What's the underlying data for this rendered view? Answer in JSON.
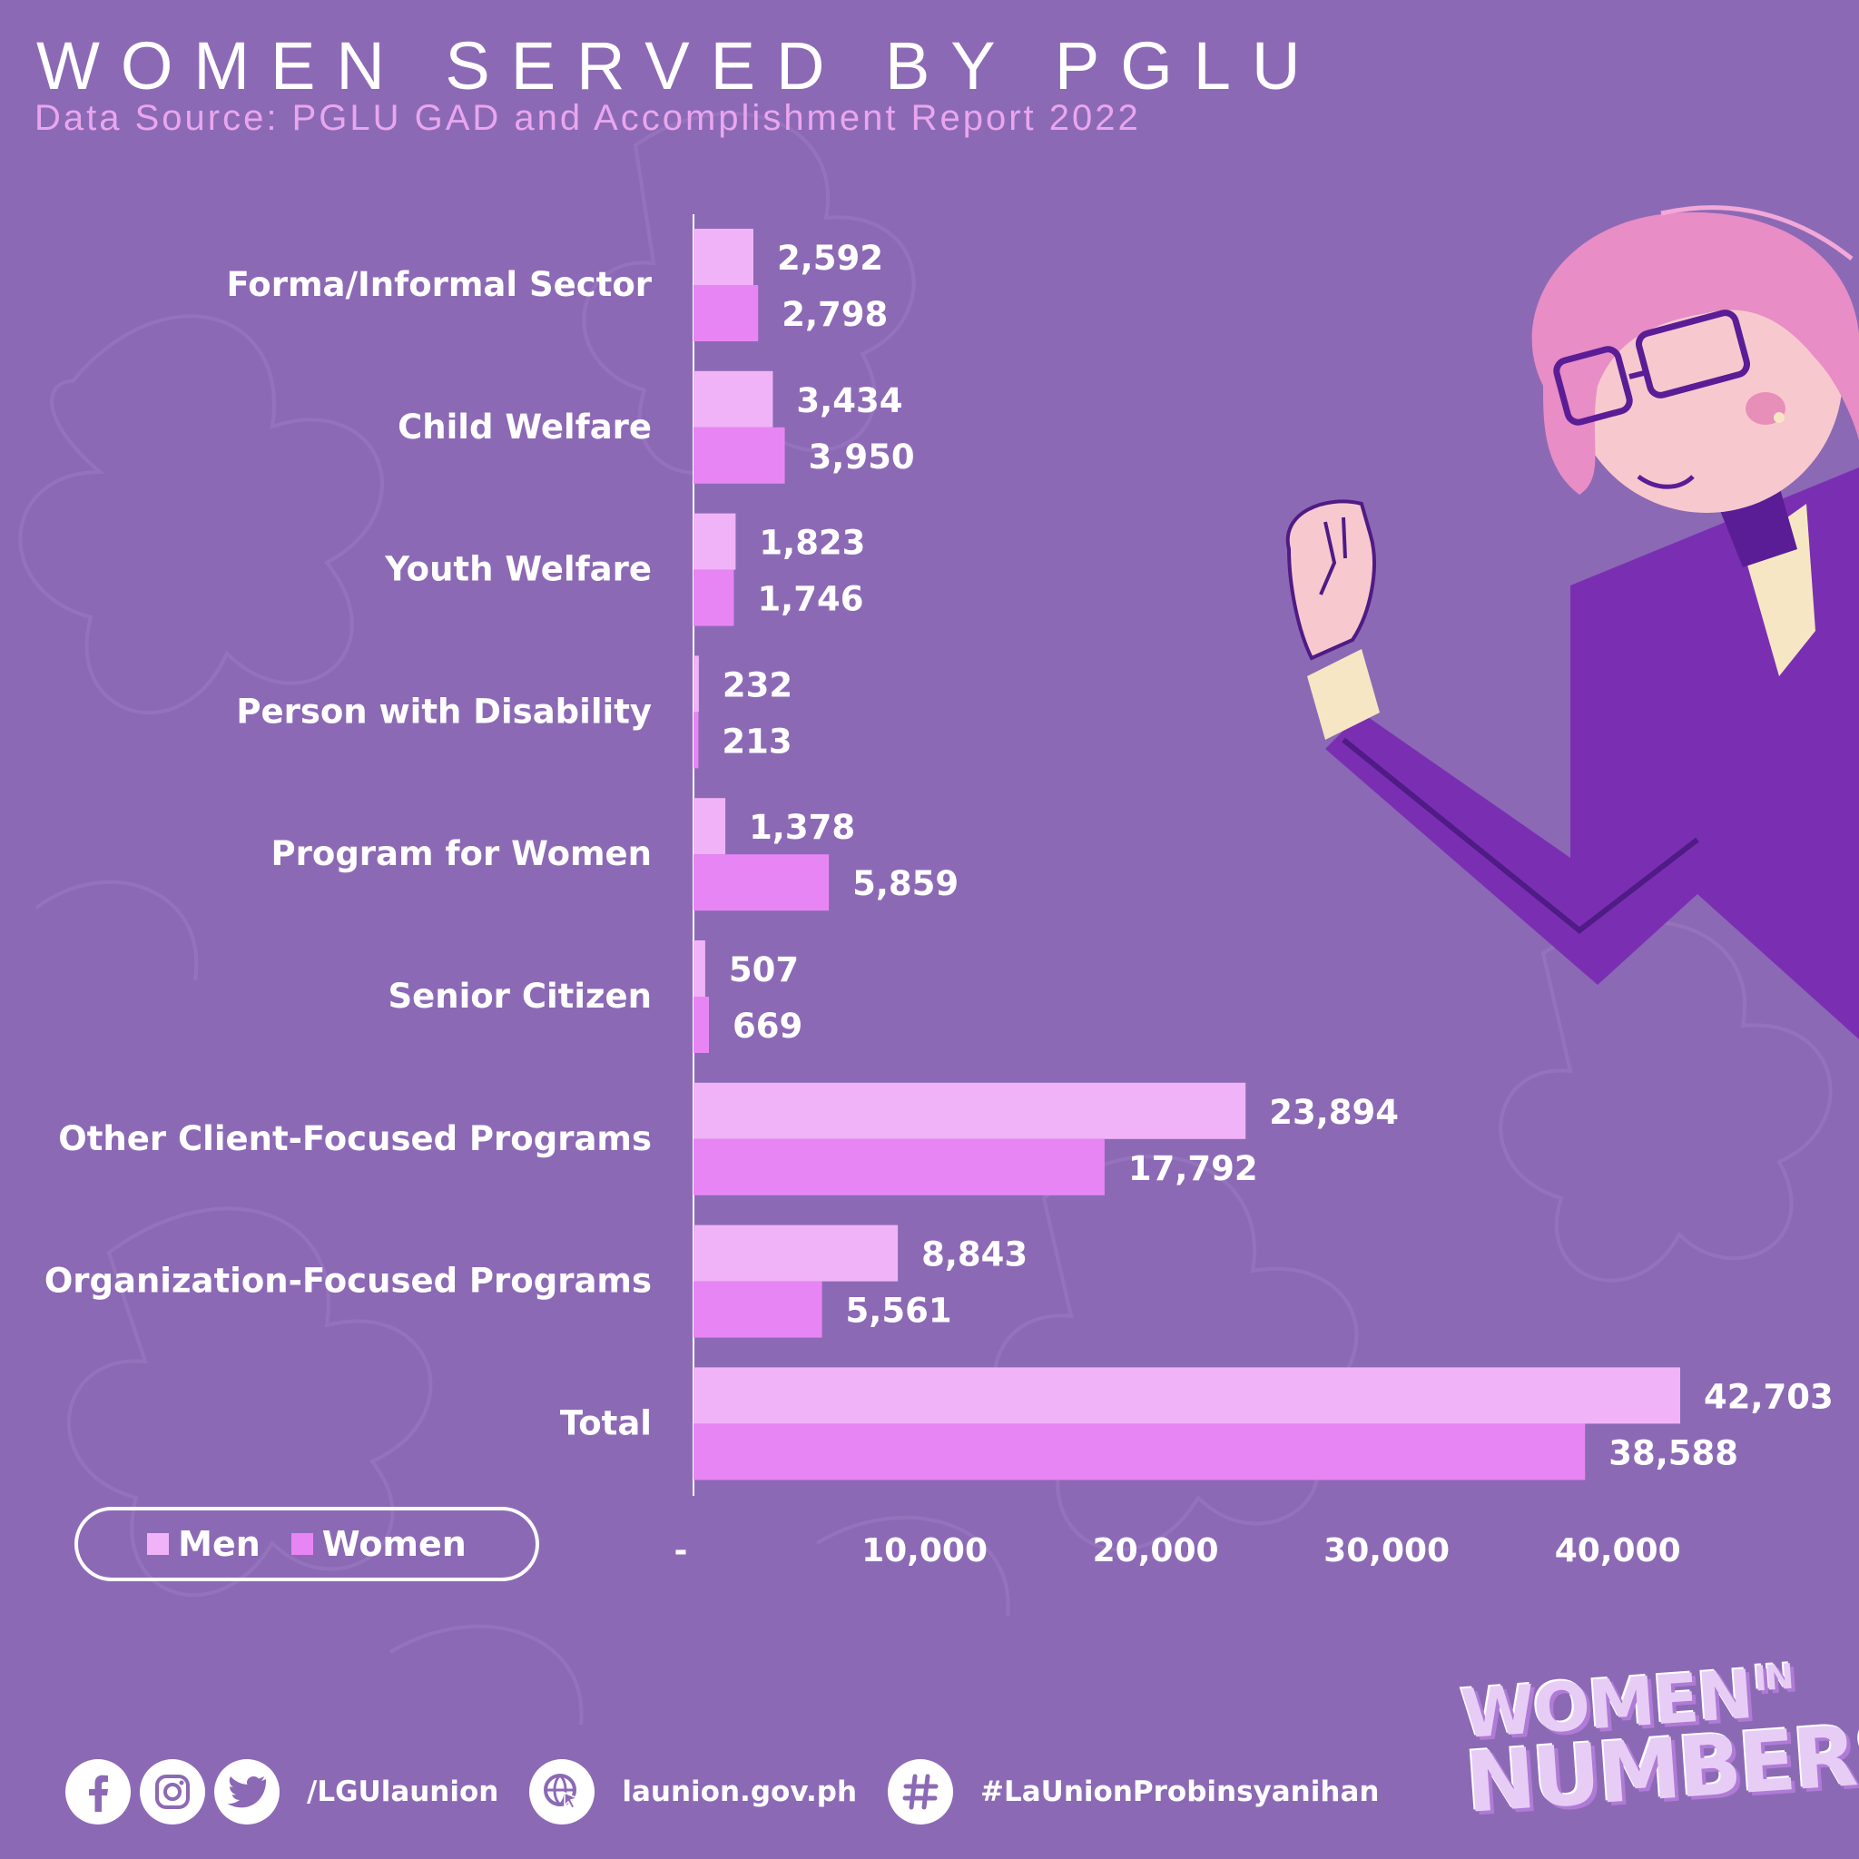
{
  "header": {
    "title": "WOMEN SERVED BY PGLU",
    "subtitle": "Data Source: PGLU GAD and Accomplishment Report 2022"
  },
  "colors": {
    "background": "#8c69b5",
    "men": "#f1b3f7",
    "women": "#e885f4",
    "text": "#ffffff",
    "subtitle": "#e9a6ee"
  },
  "chart_data": {
    "type": "bar",
    "orientation": "horizontal",
    "title": "WOMEN SERVED BY PGLU",
    "xlabel": "",
    "ylabel": "",
    "categories": [
      "Forma/Informal Sector",
      "Child Welfare",
      "Youth Welfare",
      "Person with Disability",
      "Program for Women",
      "Senior Citizen",
      "Other Client-Focused Programs",
      "Organization-Focused Programs",
      "Total"
    ],
    "series": [
      {
        "name": "Men",
        "values": [
          2592,
          3434,
          1823,
          232,
          1378,
          507,
          23894,
          8843,
          42703
        ]
      },
      {
        "name": "Women",
        "values": [
          2798,
          3950,
          1746,
          213,
          5859,
          669,
          17792,
          5561,
          38588
        ]
      }
    ],
    "value_labels": {
      "Men": [
        "2,592",
        "3,434",
        "1,823",
        "232",
        "1,378",
        "507",
        "23,894",
        "8,843",
        "42,703"
      ],
      "Women": [
        "2,798",
        "3,950",
        "1,746",
        "213",
        "5,859",
        "669",
        "17,792",
        "5,561",
        "38,588"
      ]
    },
    "xlim": [
      0,
      45000
    ],
    "xticks": [
      0,
      10000,
      20000,
      30000,
      40000
    ],
    "xtick_labels": [
      "-",
      "10,000",
      "20,000",
      "30,000",
      "40,000"
    ],
    "grid": false,
    "legend_position": "bottom-left"
  },
  "legend": {
    "men_label": "Men",
    "women_label": "Women"
  },
  "footer": {
    "handle": "/LGUlaunion",
    "website": "launion.gov.ph",
    "hashtag": "#LaUnionProbinsyanihan",
    "icons": [
      "facebook-icon",
      "instagram-icon",
      "twitter-icon",
      "globe-cursor-icon",
      "hashtag-icon"
    ]
  },
  "badge": {
    "line1": "WOMEN",
    "line1_small": "IN",
    "line2": "NUMBERS"
  }
}
